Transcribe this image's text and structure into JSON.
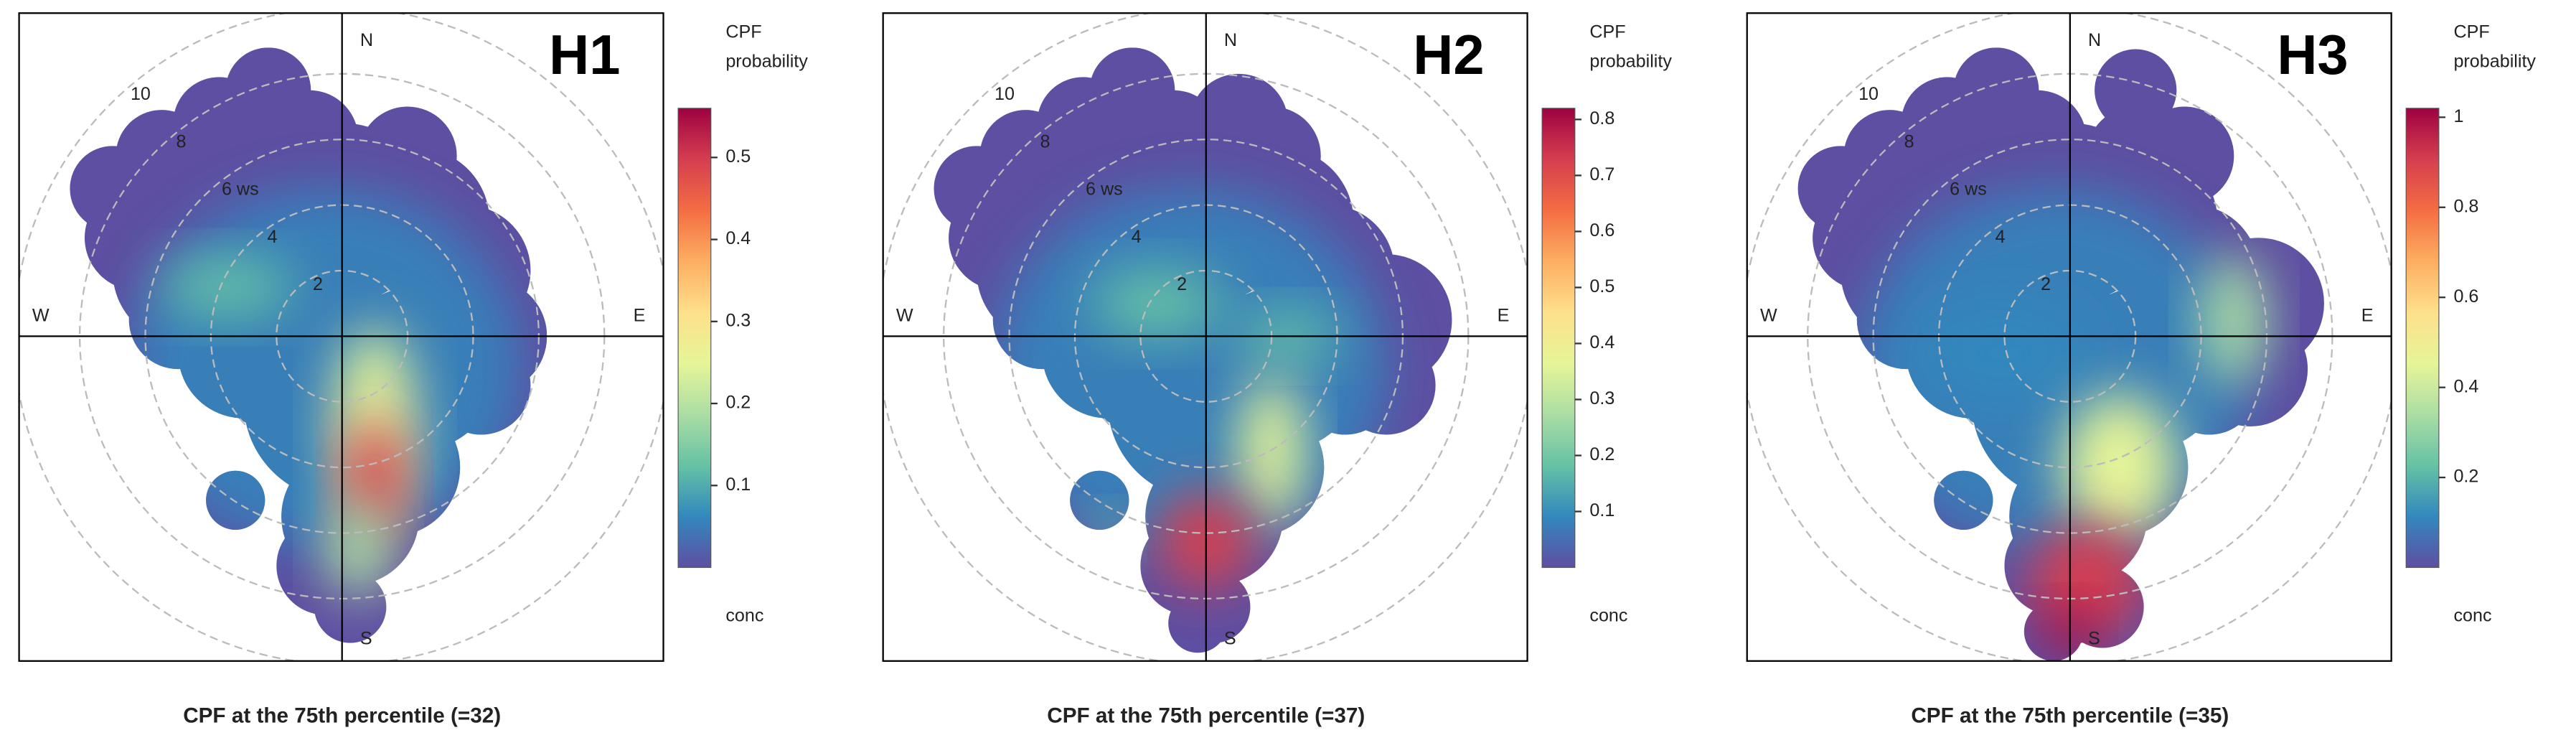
{
  "chart_data": [
    {
      "type": "polar",
      "label": "H1",
      "caption": "CPF at the 75th percentile (=32)",
      "legend_title": [
        "CPF",
        "probability"
      ],
      "legend_footer": "conc",
      "directions": [
        "N",
        "E",
        "S",
        "W"
      ],
      "rlim": [
        0,
        10
      ],
      "rticks": [
        2,
        4,
        {
          "value": 6,
          "label": "6 ws"
        },
        8,
        10
      ],
      "ylim": [
        0,
        0.56
      ],
      "yticks": [
        0.1,
        0.2,
        0.3,
        0.4,
        0.5
      ],
      "colors": [
        "#5e4fa2",
        "#3288bd",
        "#66c2a5",
        "#abdda4",
        "#e6f598",
        "#fee08b",
        "#fdae61",
        "#f46d43",
        "#d53e4f",
        "#9e0142"
      ],
      "grid": true
    },
    {
      "type": "polar",
      "label": "H2",
      "caption": "CPF at the 75th percentile (=37)",
      "legend_title": [
        "CPF",
        "probability"
      ],
      "legend_footer": "conc",
      "directions": [
        "N",
        "E",
        "S",
        "W"
      ],
      "rlim": [
        0,
        10
      ],
      "rticks": [
        2,
        4,
        {
          "value": 6,
          "label": "6 ws"
        },
        8,
        10
      ],
      "ylim": [
        0,
        0.82
      ],
      "yticks": [
        0.1,
        0.2,
        0.3,
        0.4,
        0.5,
        0.6,
        0.7,
        0.8
      ],
      "colors": [
        "#5e4fa2",
        "#3288bd",
        "#66c2a5",
        "#abdda4",
        "#e6f598",
        "#fee08b",
        "#fdae61",
        "#f46d43",
        "#d53e4f",
        "#9e0142"
      ],
      "grid": true
    },
    {
      "type": "polar",
      "label": "H3",
      "caption": "CPF at the 75th percentile (=35)",
      "legend_title": [
        "CPF",
        "probability"
      ],
      "legend_footer": "conc",
      "directions": [
        "N",
        "E",
        "S",
        "W"
      ],
      "rlim": [
        0,
        10
      ],
      "rticks": [
        2,
        4,
        {
          "value": 6,
          "label": "6 ws"
        },
        8,
        10
      ],
      "ylim": [
        0,
        1.02
      ],
      "yticks": [
        0.2,
        0.4,
        0.6,
        0.8,
        1
      ],
      "colors": [
        "#5e4fa2",
        "#3288bd",
        "#66c2a5",
        "#abdda4",
        "#e6f598",
        "#fee08b",
        "#fdae61",
        "#f46d43",
        "#d53e4f",
        "#9e0142"
      ],
      "grid": true
    }
  ]
}
